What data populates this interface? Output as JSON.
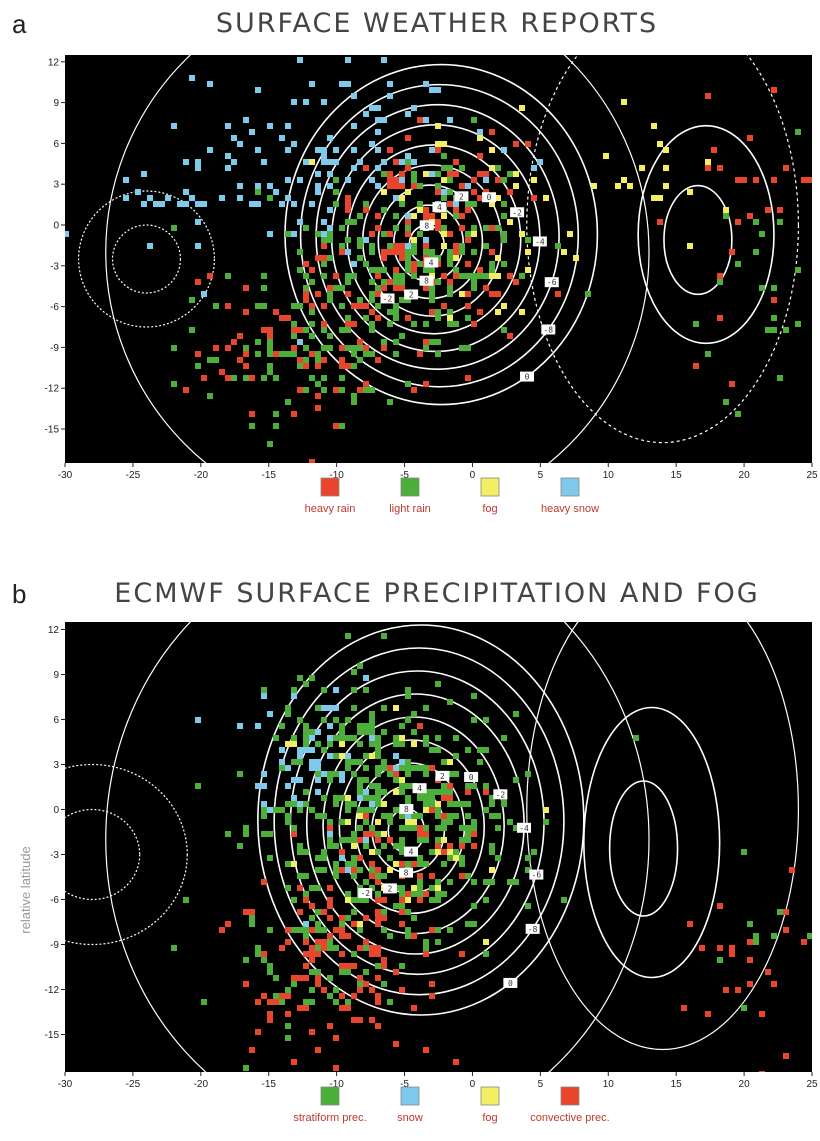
{
  "chart_data": [
    {
      "panel": "a",
      "type": "scatter",
      "title": "SURFACE WEATHER REPORTS",
      "xlabel": "",
      "ylabel": "",
      "xlim": [
        -30,
        25
      ],
      "ylim": [
        -17.5,
        12.5
      ],
      "xticks": [
        -30,
        -25,
        -20,
        -15,
        -10,
        -5,
        0,
        5,
        10,
        15,
        20,
        25
      ],
      "yticks": [
        12,
        9,
        6,
        3,
        0,
        -3,
        -6,
        -9,
        -12,
        -15
      ],
      "background": "#000000",
      "legend_placement": "bottom",
      "categories": [
        {
          "name": "heavy rain",
          "color": "#e8452c"
        },
        {
          "name": "light rain",
          "color": "#4caf3a"
        },
        {
          "name": "fog",
          "color": "#f3ee62"
        },
        {
          "name": "heavy snow",
          "color": "#7fc9ec"
        }
      ],
      "lows": [
        {
          "x": -3.5,
          "y": -1.5,
          "rx": 11.5,
          "ry": 12.5,
          "n": 9
        },
        {
          "x": 16,
          "y": -1.5,
          "rx": 5,
          "ry": 8,
          "n": 2
        }
      ],
      "highs": [
        {
          "x": -24,
          "y": -2.5,
          "rx": 5,
          "ry": 5,
          "n": 2
        }
      ],
      "point_clusters": [
        {
          "cat": 1,
          "cx": -4,
          "cy": -2,
          "sx": 4.5,
          "sy": 4,
          "n": 230
        },
        {
          "cat": 1,
          "cx": -12,
          "cy": -9,
          "sx": 4,
          "sy": 3,
          "n": 110
        },
        {
          "cat": 0,
          "cx": -3.5,
          "cy": -1,
          "sx": 3.5,
          "sy": 3.5,
          "n": 140
        },
        {
          "cat": 0,
          "cx": -12,
          "cy": -9,
          "sx": 4.5,
          "sy": 3,
          "n": 70
        },
        {
          "cat": 3,
          "cx": -10,
          "cy": 5,
          "sx": 5,
          "sy": 3.5,
          "n": 120
        },
        {
          "cat": 3,
          "cx": -24,
          "cy": 1,
          "sx": 3,
          "sy": 2,
          "n": 20
        },
        {
          "cat": 2,
          "cx": 0,
          "cy": 0,
          "sx": 5,
          "sy": 4,
          "n": 45
        },
        {
          "cat": 2,
          "cx": 13,
          "cy": 4,
          "sx": 3,
          "sy": 3,
          "n": 20
        },
        {
          "cat": 0,
          "cx": 21,
          "cy": 3,
          "sx": 3,
          "sy": 6,
          "n": 30
        },
        {
          "cat": 1,
          "cx": 21,
          "cy": -8,
          "sx": 3,
          "sy": 6,
          "n": 25
        }
      ],
      "contour_labels": [
        "8",
        "4",
        "2",
        "0",
        "-2",
        "-4",
        "-6",
        "-8",
        "0",
        "4",
        "8",
        "2",
        "-2"
      ]
    },
    {
      "panel": "b",
      "type": "scatter",
      "title": "ECMWF SURFACE PRECIPITATION AND FOG",
      "xlabel": "",
      "ylabel": "relative latitude",
      "xlim": [
        -30,
        25
      ],
      "ylim": [
        -17.5,
        12.5
      ],
      "xticks": [
        -30,
        -25,
        -20,
        -15,
        -10,
        -5,
        0,
        5,
        10,
        15,
        20,
        25
      ],
      "yticks": [
        12,
        9,
        6,
        3,
        0,
        -3,
        -6,
        -9,
        -12,
        -15
      ],
      "background": "#000000",
      "legend_placement": "bottom",
      "categories": [
        {
          "name": "stratiform prec.",
          "color": "#4caf3a"
        },
        {
          "name": "snow",
          "color": "#7fc9ec"
        },
        {
          "name": "fog",
          "color": "#f3ee62"
        },
        {
          "name": "convective prec.",
          "color": "#e8452c"
        }
      ],
      "lows": [
        {
          "x": -5,
          "y": -1.5,
          "rx": 12,
          "ry": 13,
          "n": 9
        },
        {
          "x": 12,
          "y": -3,
          "rx": 5,
          "ry": 9,
          "n": 2
        }
      ],
      "highs": [
        {
          "x": -28,
          "y": -3,
          "rx": 7,
          "ry": 6,
          "n": 2
        }
      ],
      "point_clusters": [
        {
          "cat": 0,
          "cx": -6,
          "cy": -1,
          "sx": 4.5,
          "sy": 4,
          "n": 380
        },
        {
          "cat": 0,
          "cx": -12,
          "cy": -8,
          "sx": 4,
          "sy": 4,
          "n": 80
        },
        {
          "cat": 0,
          "cx": -10,
          "cy": 5,
          "sx": 4,
          "sy": 3,
          "n": 60
        },
        {
          "cat": 3,
          "cx": -10,
          "cy": -10,
          "sx": 4,
          "sy": 3.5,
          "n": 130
        },
        {
          "cat": 3,
          "cx": -4,
          "cy": -2,
          "sx": 3,
          "sy": 3,
          "n": 40
        },
        {
          "cat": 1,
          "cx": -12,
          "cy": 3,
          "sx": 3,
          "sy": 3.5,
          "n": 60
        },
        {
          "cat": 2,
          "cx": -5,
          "cy": -1,
          "sx": 4,
          "sy": 3.5,
          "n": 40
        },
        {
          "cat": 3,
          "cx": 21,
          "cy": -10,
          "sx": 2.5,
          "sy": 4,
          "n": 25
        },
        {
          "cat": 0,
          "cx": 21,
          "cy": -10,
          "sx": 2.5,
          "sy": 4,
          "n": 12
        }
      ],
      "contour_labels": [
        "8",
        "4",
        "2",
        "0",
        "-2",
        "-4",
        "-6",
        "-8",
        "0",
        "4",
        "8",
        "2",
        "-2"
      ]
    }
  ]
}
